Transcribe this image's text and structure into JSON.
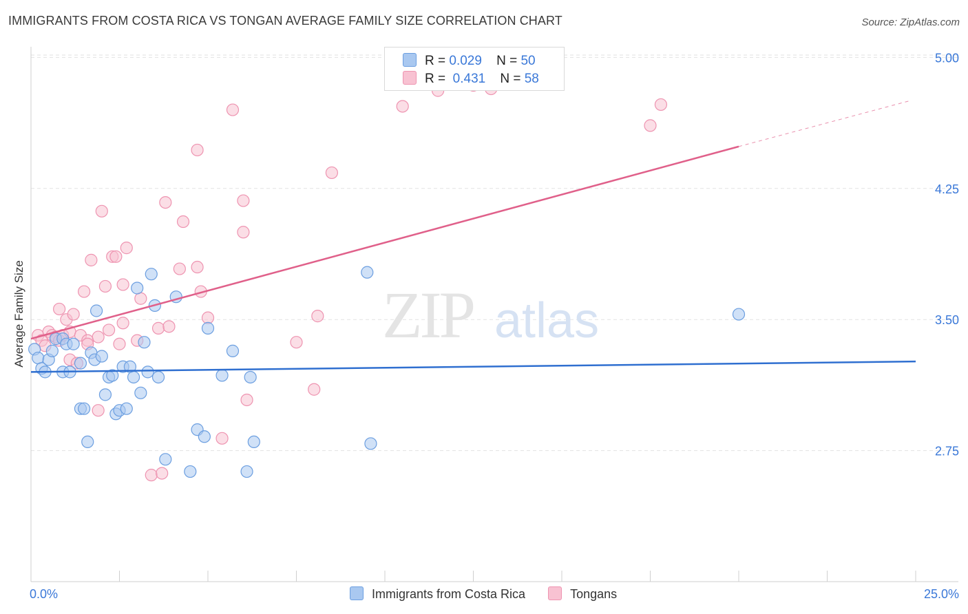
{
  "title": "IMMIGRANTS FROM COSTA RICA VS TONGAN AVERAGE FAMILY SIZE CORRELATION CHART",
  "source": "Source: ZipAtlas.com",
  "watermark": {
    "zip": "ZIP",
    "atlas": "atlas"
  },
  "legend_top": [
    {
      "r_label": "R =",
      "r_value": "0.029",
      "n_label": "N =",
      "n_value": "50"
    },
    {
      "r_label": "R =",
      "r_value": "0.431",
      "n_label": "N =",
      "n_value": "58"
    }
  ],
  "chart_data": {
    "type": "scatter",
    "title": "IMMIGRANTS FROM COSTA RICA VS TONGAN AVERAGE FAMILY SIZE CORRELATION CHART",
    "xlabel": "",
    "ylabel": "Average Family Size",
    "xlim": [
      0,
      25
    ],
    "ylim": [
      2.0,
      5.1
    ],
    "x_tick_labels": [
      "0.0%",
      "25.0%"
    ],
    "y_ticks": [
      2.75,
      3.5,
      4.25,
      5.0
    ],
    "y_tick_labels": [
      "2.75",
      "3.50",
      "4.25",
      "5.00"
    ],
    "grid": true,
    "colors": {
      "blue_fill": "#a9c8f0",
      "blue_stroke": "#6b9ee0",
      "blue_line": "#2f6fd0",
      "pink_fill": "#f8c2d2",
      "pink_stroke": "#ee93b0",
      "pink_line": "#e0608a",
      "tick_text": "#3a78d8"
    },
    "series": [
      {
        "name": "Immigrants from Costa Rica",
        "color": "#a9c8f0",
        "trend": {
          "x": [
            0,
            25
          ],
          "y": [
            3.2,
            3.26
          ]
        },
        "points": [
          [
            0.1,
            3.33
          ],
          [
            0.2,
            3.28
          ],
          [
            0.3,
            3.22
          ],
          [
            0.4,
            3.2
          ],
          [
            0.5,
            3.27
          ],
          [
            0.6,
            3.32
          ],
          [
            0.7,
            3.39
          ],
          [
            0.9,
            3.39
          ],
          [
            1.0,
            3.36
          ],
          [
            0.9,
            3.2
          ],
          [
            1.1,
            3.2
          ],
          [
            1.2,
            3.36
          ],
          [
            1.4,
            3.25
          ],
          [
            1.4,
            2.99
          ],
          [
            1.5,
            2.99
          ],
          [
            1.6,
            2.8
          ],
          [
            1.7,
            3.31
          ],
          [
            1.8,
            3.27
          ],
          [
            1.85,
            3.55
          ],
          [
            2.0,
            3.29
          ],
          [
            2.1,
            3.07
          ],
          [
            2.2,
            3.17
          ],
          [
            2.3,
            3.18
          ],
          [
            2.4,
            2.96
          ],
          [
            2.5,
            2.98
          ],
          [
            2.6,
            3.23
          ],
          [
            2.7,
            2.99
          ],
          [
            2.8,
            3.23
          ],
          [
            2.9,
            3.17
          ],
          [
            3.0,
            3.68
          ],
          [
            3.1,
            3.08
          ],
          [
            3.2,
            3.37
          ],
          [
            3.3,
            3.2
          ],
          [
            3.4,
            3.76
          ],
          [
            3.5,
            3.58
          ],
          [
            3.6,
            3.17
          ],
          [
            4.1,
            3.63
          ],
          [
            4.7,
            2.87
          ],
          [
            4.9,
            2.83
          ],
          [
            5.0,
            3.45
          ],
          [
            5.4,
            3.18
          ],
          [
            5.7,
            3.32
          ],
          [
            6.2,
            3.17
          ],
          [
            6.3,
            2.8
          ],
          [
            3.8,
            2.7
          ],
          [
            4.5,
            2.63
          ],
          [
            6.1,
            2.63
          ],
          [
            9.5,
            3.77
          ],
          [
            9.6,
            2.79
          ],
          [
            20.0,
            3.53
          ]
        ]
      },
      {
        "name": "Tongans",
        "color": "#f8c2d2",
        "trend": {
          "x": [
            0,
            20
          ],
          "y": [
            3.39,
            4.49
          ]
        },
        "trend_ext": {
          "x": [
            20,
            24.8
          ],
          "y": [
            4.49,
            4.75
          ]
        },
        "points": [
          [
            0.2,
            3.41
          ],
          [
            0.3,
            3.38
          ],
          [
            0.4,
            3.35
          ],
          [
            0.5,
            3.43
          ],
          [
            0.6,
            3.41
          ],
          [
            0.7,
            3.4
          ],
          [
            0.8,
            3.38
          ],
          [
            0.8,
            3.56
          ],
          [
            0.9,
            3.41
          ],
          [
            1.0,
            3.5
          ],
          [
            1.1,
            3.43
          ],
          [
            1.1,
            3.27
          ],
          [
            1.2,
            3.53
          ],
          [
            1.3,
            3.25
          ],
          [
            1.4,
            3.41
          ],
          [
            1.5,
            3.66
          ],
          [
            1.6,
            3.38
          ],
          [
            1.6,
            3.36
          ],
          [
            1.7,
            3.84
          ],
          [
            1.9,
            3.4
          ],
          [
            1.9,
            2.98
          ],
          [
            2.0,
            4.12
          ],
          [
            2.1,
            3.69
          ],
          [
            2.2,
            3.44
          ],
          [
            2.3,
            3.86
          ],
          [
            2.4,
            3.86
          ],
          [
            2.5,
            3.36
          ],
          [
            2.6,
            3.48
          ],
          [
            2.6,
            3.7
          ],
          [
            2.7,
            3.91
          ],
          [
            3.0,
            3.38
          ],
          [
            3.1,
            3.62
          ],
          [
            3.4,
            2.61
          ],
          [
            3.6,
            3.45
          ],
          [
            3.7,
            2.62
          ],
          [
            3.8,
            4.17
          ],
          [
            3.9,
            3.46
          ],
          [
            4.2,
            3.79
          ],
          [
            4.3,
            4.06
          ],
          [
            4.7,
            3.8
          ],
          [
            4.7,
            4.47
          ],
          [
            4.8,
            3.66
          ],
          [
            5.0,
            3.51
          ],
          [
            5.4,
            2.82
          ],
          [
            5.7,
            4.7
          ],
          [
            6.0,
            4.18
          ],
          [
            6.0,
            4.0
          ],
          [
            6.1,
            3.04
          ],
          [
            7.5,
            3.37
          ],
          [
            8.0,
            3.1
          ],
          [
            8.1,
            3.52
          ],
          [
            8.5,
            4.34
          ],
          [
            10.5,
            4.72
          ],
          [
            11.5,
            4.81
          ],
          [
            12.5,
            4.84
          ],
          [
            13.0,
            4.82
          ],
          [
            17.5,
            4.61
          ],
          [
            17.8,
            4.73
          ]
        ]
      }
    ]
  },
  "legend_bottom": [
    "Immigrants from Costa Rica",
    "Tongans"
  ]
}
